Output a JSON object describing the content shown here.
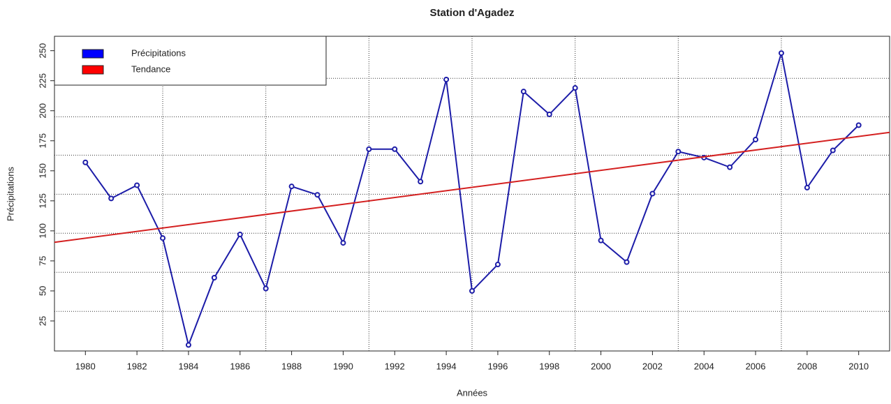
{
  "chart_data": {
    "type": "line",
    "title": "Station d'Agadez",
    "x_label": "Années",
    "y_label": "Précipitations",
    "x": [
      1980,
      1981,
      1982,
      1983,
      1984,
      1985,
      1986,
      1987,
      1988,
      1989,
      1990,
      1991,
      1992,
      1993,
      1994,
      1995,
      1996,
      1997,
      1998,
      1999,
      2000,
      2001,
      2002,
      2003,
      2004,
      2005,
      2006,
      2007,
      2008,
      2009,
      2010
    ],
    "series": [
      {
        "name": "Précipitations",
        "color": "#1c1ca8",
        "legend_color": "#0000ff",
        "values": [
          157,
          127,
          138,
          94,
          5,
          61,
          97,
          52,
          137,
          130,
          90,
          168,
          168,
          141,
          226,
          50,
          72,
          216,
          197,
          219,
          92,
          74,
          131,
          166,
          161,
          153,
          176,
          248,
          136,
          167,
          188
        ]
      }
    ],
    "trend": {
      "name": "Tendance",
      "color": "#d42020",
      "legend_color": "#ff0000",
      "x": [
        1978.8,
        2011.2
      ],
      "values": [
        90.5,
        182
      ]
    },
    "xlim": [
      1978.8,
      2011.2
    ],
    "ylim": [
      0,
      262
    ],
    "xticks": [
      1980,
      1982,
      1984,
      1986,
      1988,
      1990,
      1992,
      1994,
      1996,
      1998,
      2000,
      2002,
      2004,
      2006,
      2008,
      2010
    ],
    "yticks": [
      25,
      50,
      75,
      100,
      125,
      150,
      175,
      200,
      225,
      250
    ],
    "xgrid": [
      1983,
      1987,
      1991,
      1995,
      1999,
      2003,
      2007
    ],
    "ygrid": [
      33,
      65.5,
      98,
      130.5,
      163,
      195,
      227
    ],
    "legend_position": "top-left"
  }
}
